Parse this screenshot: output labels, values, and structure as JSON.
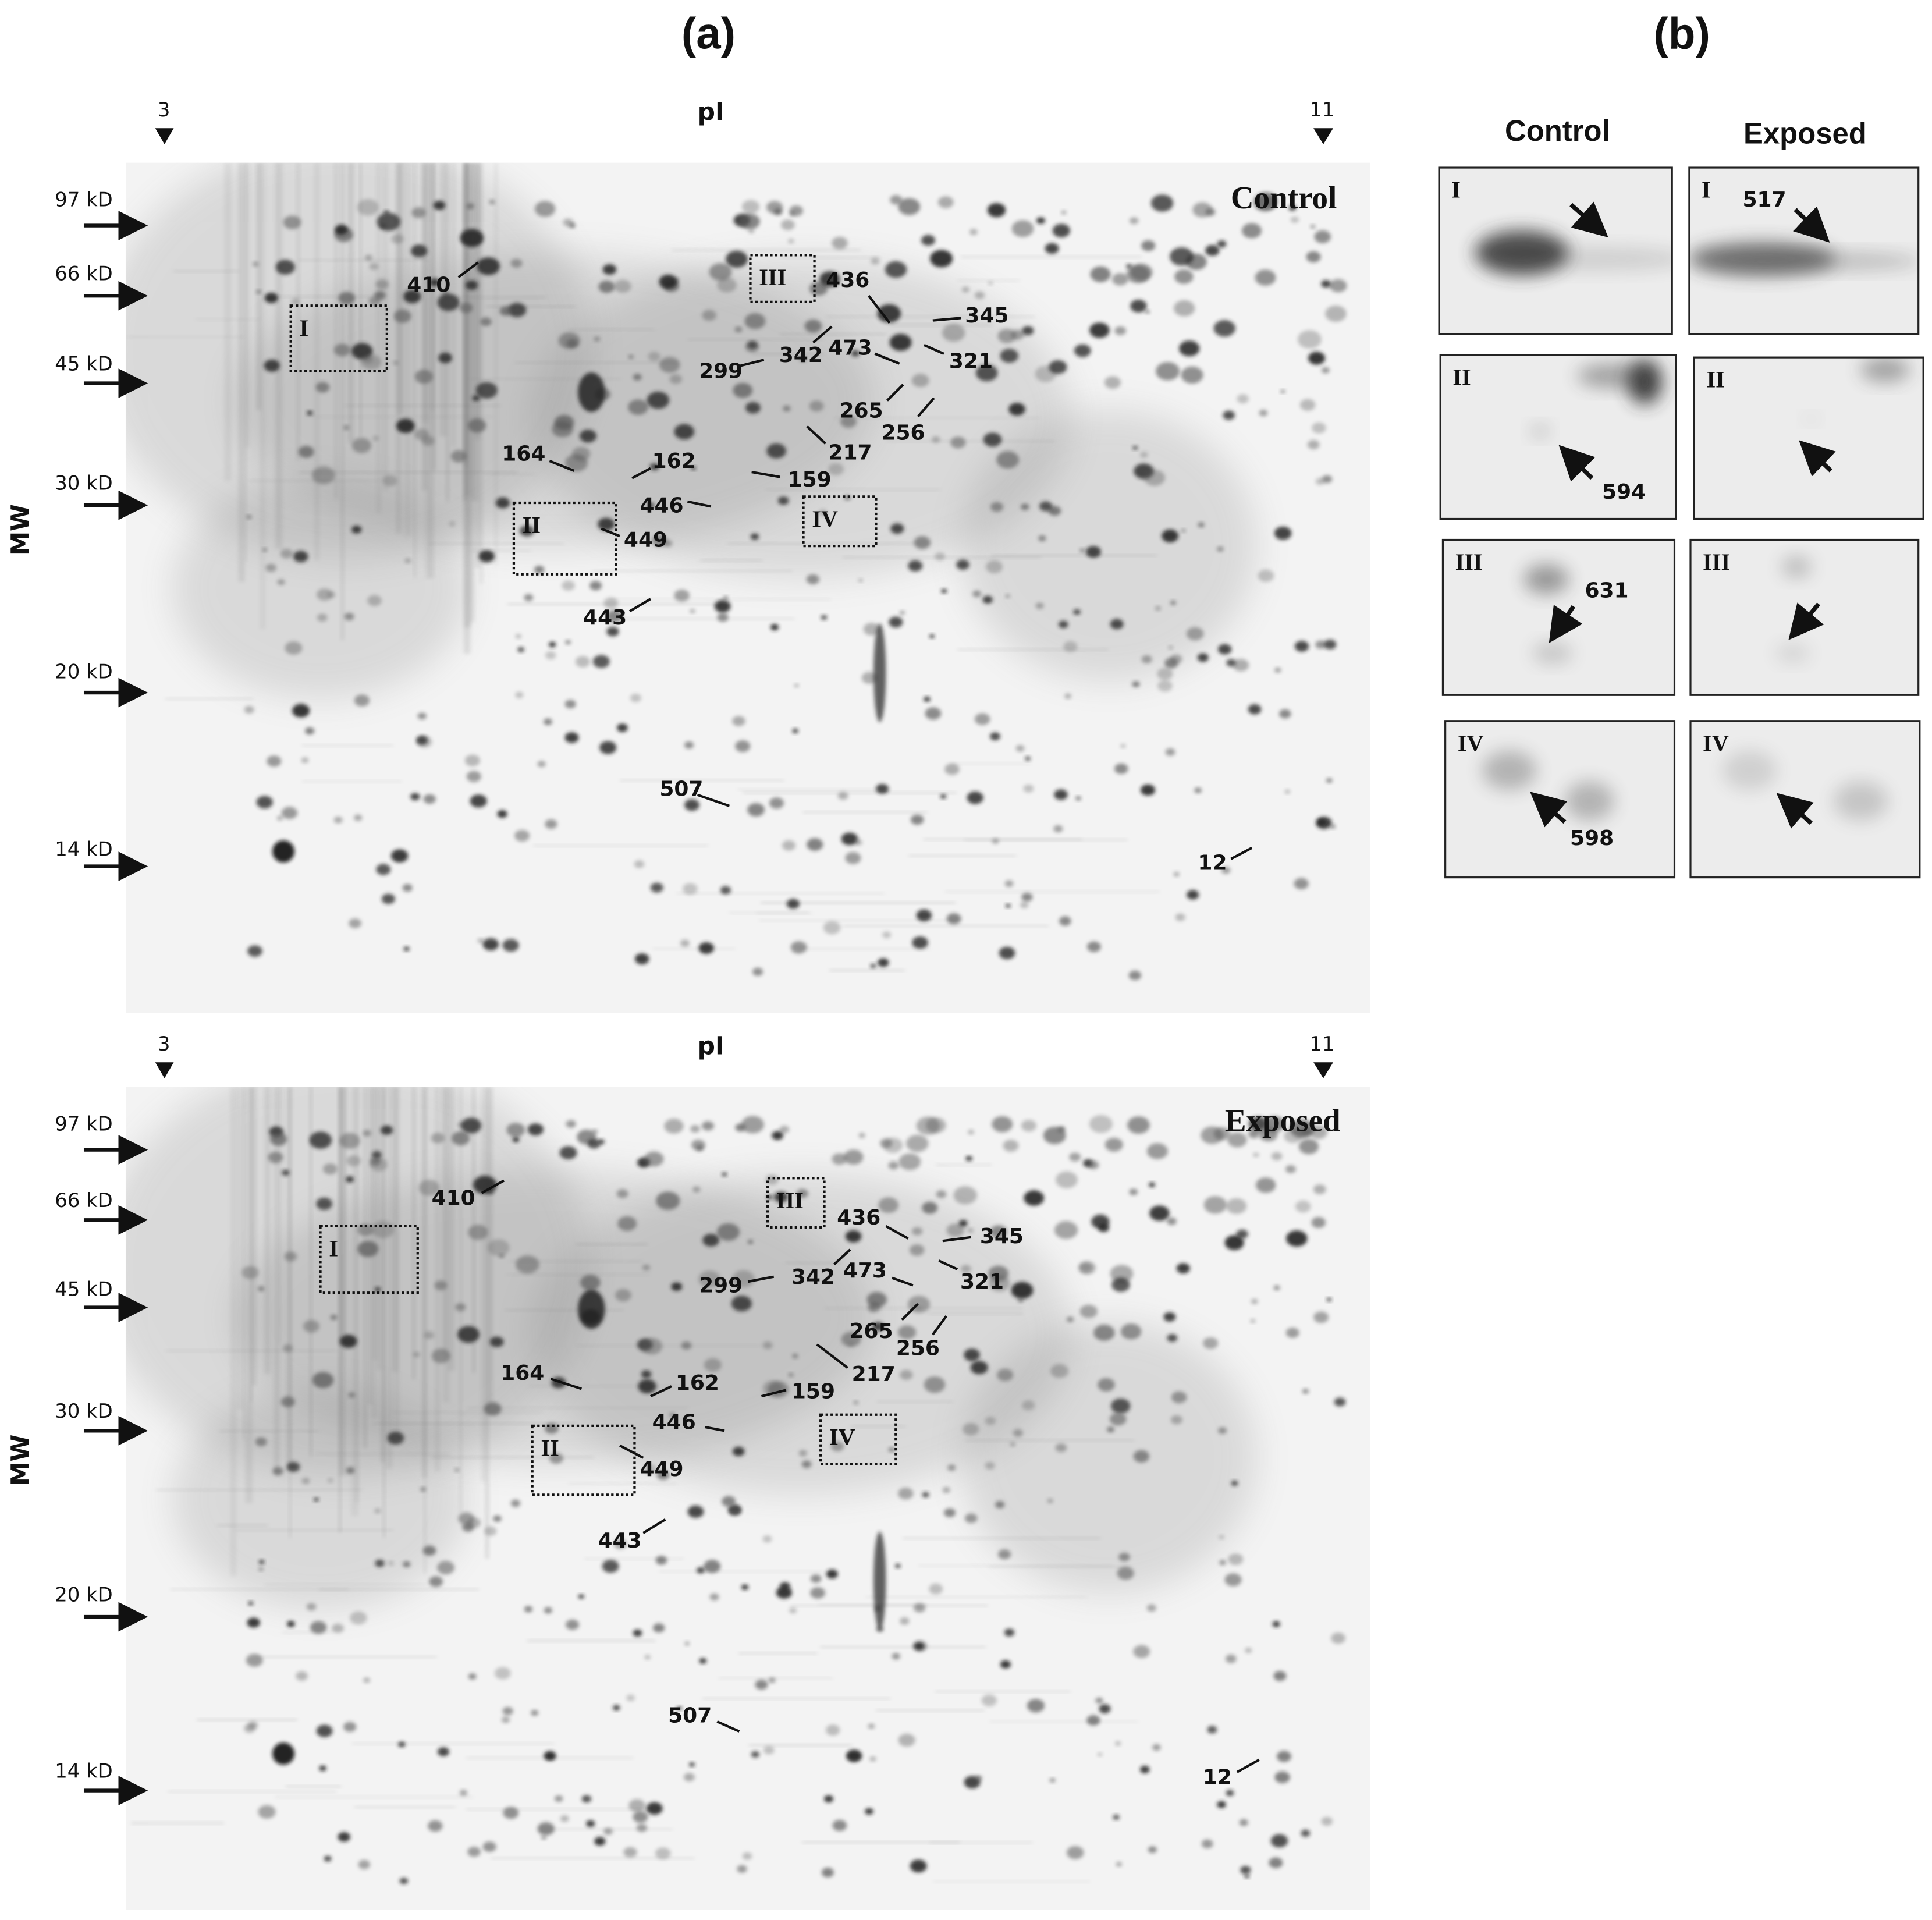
{
  "panel_a": {
    "label": "(a)",
    "gels": [
      {
        "condition": "Control",
        "pi_title": "pI",
        "pi_start": "3",
        "pi_end": "11",
        "mw_title": "MW",
        "mw_markers": [
          "97 kD",
          "66 kD",
          "45 kD",
          "30 kD",
          "20 kD",
          "14 kD"
        ],
        "boxes": [
          "I",
          "II",
          "III",
          "IV"
        ],
        "spots": [
          "410",
          "436",
          "345",
          "473",
          "321",
          "342",
          "299",
          "265",
          "256",
          "217",
          "164",
          "162",
          "159",
          "446",
          "449",
          "443",
          "507",
          "12"
        ]
      },
      {
        "condition": "Exposed",
        "pi_title": "pI",
        "pi_start": "3",
        "pi_end": "11",
        "mw_title": "MW",
        "mw_markers": [
          "97 kD",
          "66 kD",
          "45 kD",
          "30 kD",
          "20 kD",
          "14 kD"
        ],
        "boxes": [
          "I",
          "II",
          "III",
          "IV"
        ],
        "spots": [
          "410",
          "436",
          "345",
          "473",
          "321",
          "342",
          "299",
          "265",
          "256",
          "217",
          "164",
          "162",
          "159",
          "446",
          "449",
          "443",
          "507",
          "12"
        ]
      }
    ]
  },
  "panel_b": {
    "label": "(b)",
    "columns": [
      "Control",
      "Exposed"
    ],
    "rows": [
      {
        "control": {
          "label": "I"
        },
        "exposed": {
          "label": "I",
          "spot": "517"
        }
      },
      {
        "control": {
          "label": "II",
          "spot": "594"
        },
        "exposed": {
          "label": "II"
        }
      },
      {
        "control": {
          "label": "III",
          "spot": "631"
        },
        "exposed": {
          "label": "III"
        }
      },
      {
        "control": {
          "label": "IV",
          "spot": "598"
        },
        "exposed": {
          "label": "IV"
        }
      }
    ]
  }
}
